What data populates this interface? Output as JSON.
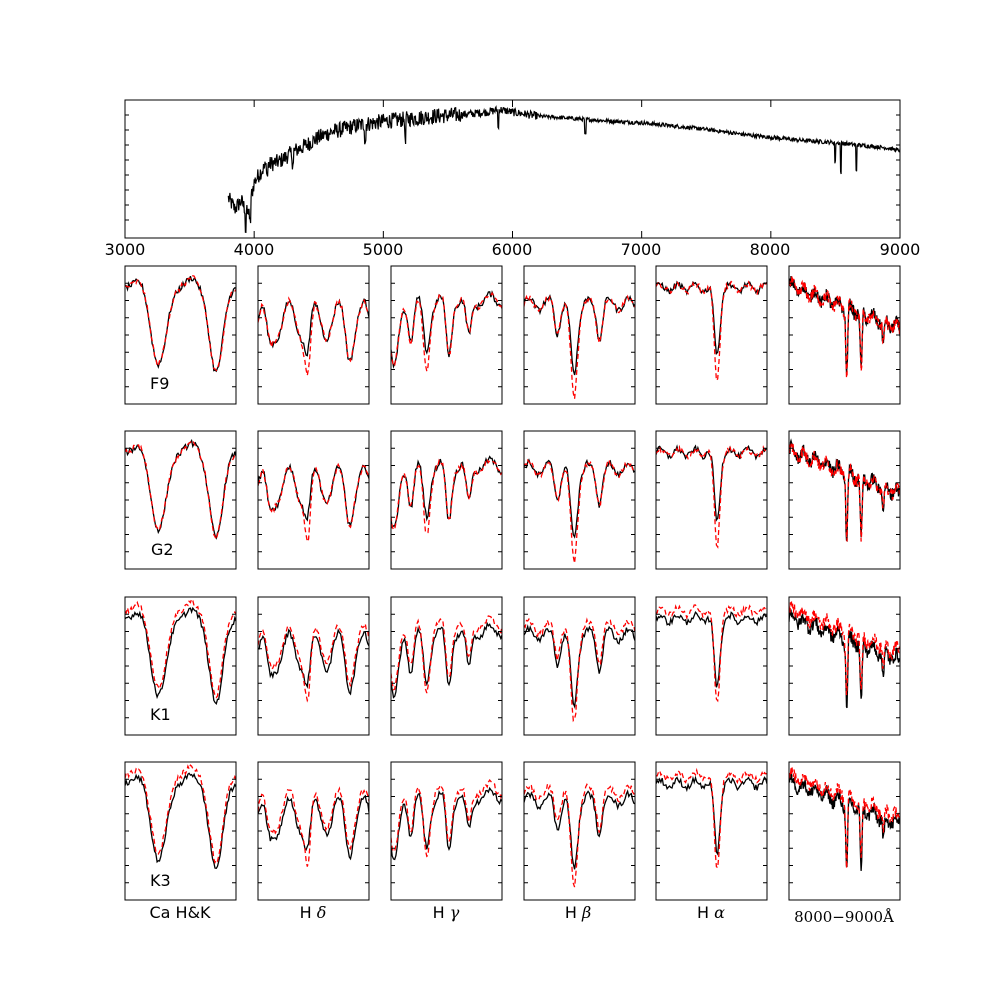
{
  "colors": {
    "observed": "#000000",
    "model": "#ff0000"
  },
  "chart_data": [
    {
      "type": "line",
      "panel": "full-spectrum",
      "x_range": [
        3000,
        9000
      ],
      "x_ticks": [
        "3000",
        "4000",
        "5000",
        "6000",
        "7000",
        "8000",
        "9000"
      ],
      "y_ticks_shown": false,
      "series": [
        {
          "style": "solid-black",
          "x": [
            3800,
            3850,
            3900,
            3950,
            4000,
            4050,
            4100,
            4200,
            4300,
            4400,
            4500,
            4600,
            4800,
            5000,
            5200,
            5400,
            5600,
            5800,
            5900,
            6000,
            6200,
            6500,
            6800,
            7000,
            7200,
            7500,
            7800,
            8000,
            8200,
            8500,
            8700,
            8900,
            9000
          ],
          "y": [
            0.3,
            0.22,
            0.28,
            0.18,
            0.42,
            0.5,
            0.55,
            0.58,
            0.65,
            0.7,
            0.76,
            0.8,
            0.85,
            0.88,
            0.9,
            0.92,
            0.93,
            0.95,
            0.97,
            0.95,
            0.92,
            0.9,
            0.88,
            0.87,
            0.85,
            0.82,
            0.78,
            0.76,
            0.74,
            0.72,
            0.7,
            0.68,
            0.66
          ]
        }
      ]
    },
    {
      "type": "line",
      "panel": "line-grid",
      "rows": [
        "F9",
        "G2",
        "K1",
        "K3"
      ],
      "columns": [
        "Ca H&K",
        "H δ",
        "H γ",
        "H β",
        "H α",
        "8000−9000Å"
      ],
      "series": [
        "observed (solid black)",
        "model (dashed red)"
      ]
    }
  ],
  "main_axis": {
    "tick_labels": [
      "3000",
      "4000",
      "5000",
      "6000",
      "7000",
      "8000",
      "9000"
    ]
  },
  "rows": {
    "labels": [
      "F9",
      "G2",
      "K1",
      "K3"
    ]
  },
  "columns": {
    "ca_hk": "Ca H&K",
    "h_delta_prefix": "H ",
    "h_delta_symbol": "δ",
    "h_gamma_prefix": "H ",
    "h_gamma_symbol": "γ",
    "h_beta_prefix": "H ",
    "h_beta_symbol": "β",
    "h_alpha_prefix": "H ",
    "h_alpha_symbol": "α",
    "nir": "8000−9000Å"
  }
}
